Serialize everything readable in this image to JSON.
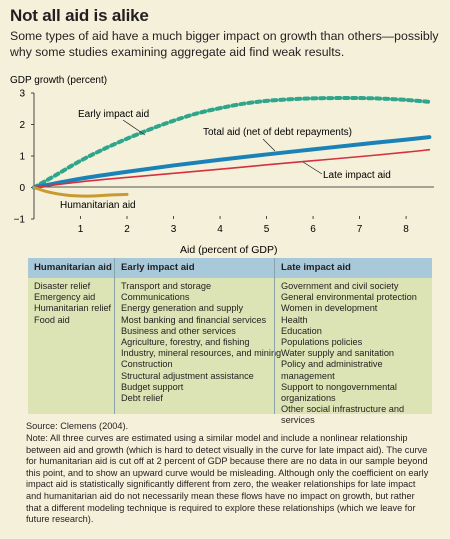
{
  "title": "Not all aid is alike",
  "subtitle": "Some types of aid have a much bigger impact on growth than others—possibly why some studies examining aggregate aid find weak results.",
  "colors": {
    "early": "#2fa58b",
    "total": "#1b82b8",
    "late": "#d6303f",
    "humanitarian": "#c99a30",
    "table_header": "#a8c9d9",
    "table_body": "#dce3b4"
  },
  "chart_data": {
    "type": "line",
    "ylabel": "GDP growth (percent)",
    "xlabel": "Aid (percent of GDP)",
    "xlim": [
      0,
      8.6
    ],
    "ylim": [
      -1,
      3
    ],
    "x_ticks": [
      1,
      2,
      3,
      4,
      5,
      6,
      7,
      8
    ],
    "y_ticks": [
      -1,
      0,
      1,
      2,
      3
    ],
    "grid": false,
    "series": [
      {
        "name": "Early impact aid",
        "style": "dotted",
        "x": [
          0,
          0.5,
          1,
          1.5,
          2,
          2.5,
          3,
          3.5,
          4,
          4.5,
          5,
          5.5,
          6,
          6.5,
          7,
          7.5,
          8,
          8.5
        ],
        "y": [
          0,
          0.42,
          0.85,
          1.22,
          1.55,
          1.85,
          2.12,
          2.35,
          2.52,
          2.66,
          2.75,
          2.8,
          2.83,
          2.84,
          2.84,
          2.82,
          2.78,
          2.72
        ]
      },
      {
        "name": "Total aid (net of debt repayments)",
        "style": "solid",
        "x": [
          0,
          1,
          2,
          3,
          4,
          5,
          6,
          7,
          8,
          8.5
        ],
        "y": [
          0,
          0.28,
          0.5,
          0.7,
          0.88,
          1.05,
          1.21,
          1.37,
          1.52,
          1.6
        ]
      },
      {
        "name": "Late impact aid",
        "style": "solid",
        "x": [
          0,
          1,
          2,
          3,
          4,
          5,
          6,
          7,
          8,
          8.5
        ],
        "y": [
          0,
          0.18,
          0.32,
          0.45,
          0.58,
          0.72,
          0.85,
          0.98,
          1.12,
          1.2
        ]
      },
      {
        "name": "Humanitarian aid",
        "style": "solid",
        "x": [
          0,
          0.25,
          0.5,
          0.75,
          1,
          1.25,
          1.5,
          1.75,
          2
        ],
        "y": [
          0,
          -0.12,
          -0.2,
          -0.25,
          -0.27,
          -0.27,
          -0.25,
          -0.23,
          -0.22
        ]
      }
    ]
  },
  "table": {
    "columns": [
      {
        "header": "Humanitarian aid",
        "items": [
          "Disaster relief",
          "Emergency aid",
          "Humanitarian relief",
          "Food aid"
        ]
      },
      {
        "header": "Early impact aid",
        "items": [
          "Transport and storage",
          "Communications",
          "Energy generation and supply",
          "Most banking and financial services",
          "Business and other services",
          "Agriculture, forestry, and fishing",
          "Industry, mineral resources, and mining",
          "Construction",
          "Structural adjustment assistance",
          "Budget support",
          "Debt relief"
        ]
      },
      {
        "header": "Late impact aid",
        "items": [
          "Government and civil society",
          "General environmental protection",
          "Women in development",
          "Health",
          "Education",
          "Populations policies",
          "Water supply and sanitation",
          "Policy and administrative management",
          "Support to nongovernmental organizations",
          "Other social infrastructure and services"
        ]
      }
    ]
  },
  "source": "Source: Clemens (2004).",
  "note": "Note: All three curves are estimated using a similar model and include a nonlinear relationship between aid and growth (which is hard to detect visually in the curve for late impact aid). The curve for humanitarian aid is cut off at 2 percent of GDP because there are no data in our sample beyond this point, and to show an upward curve would be misleading. Although only the coefficient on early impact aid is statistically significantly different from zero, the weaker relationships for late impact and humanitarian aid do not necessarily mean these flows have no impact on growth, but rather that a different modeling technique is required to explore these relationships (which we leave for future research)."
}
